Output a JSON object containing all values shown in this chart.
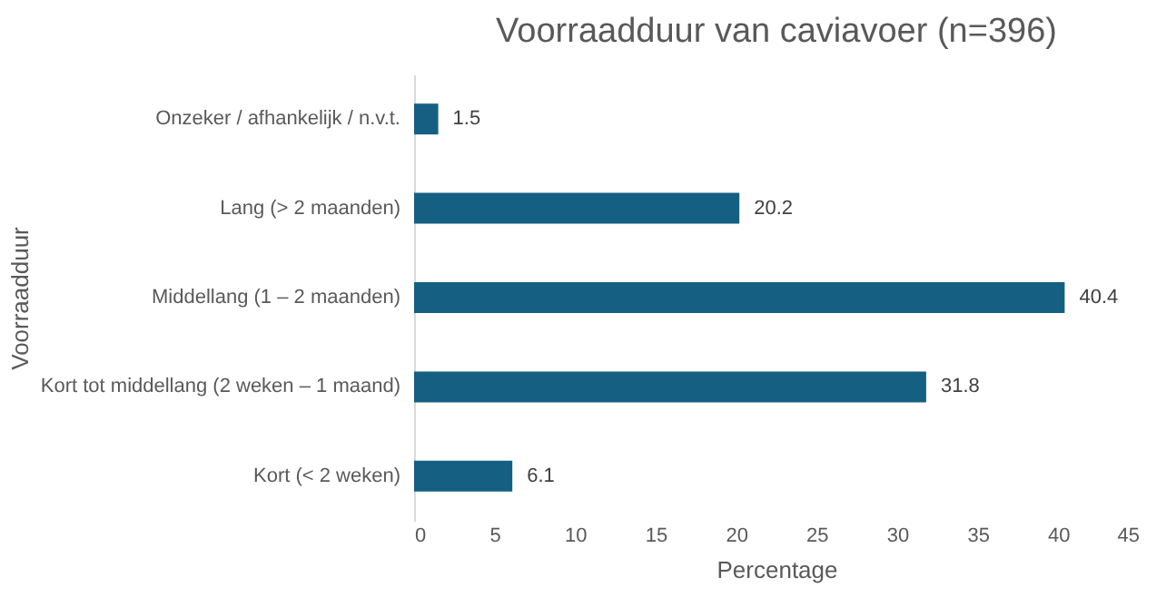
{
  "chart_data": {
    "type": "bar",
    "orientation": "horizontal",
    "title": "Voorraadduur van caviavoer (n=396)",
    "xlabel": "Percentage",
    "ylabel": "Voorraadduur",
    "categories": [
      "Onzeker / afhankelijk / n.v.t.",
      "Lang (> 2 maanden)",
      "Middellang (1 – 2 maanden)",
      "Kort tot middellang (2 weken – 1 maand)",
      "Kort (< 2 weken)"
    ],
    "values": [
      1.5,
      20.2,
      40.4,
      31.8,
      6.1
    ],
    "color": "#156082",
    "xlim": [
      0,
      45
    ],
    "xticks": [
      0,
      5,
      10,
      15,
      20,
      25,
      30,
      35,
      40,
      45
    ],
    "grid": false,
    "data_labels": true
  }
}
